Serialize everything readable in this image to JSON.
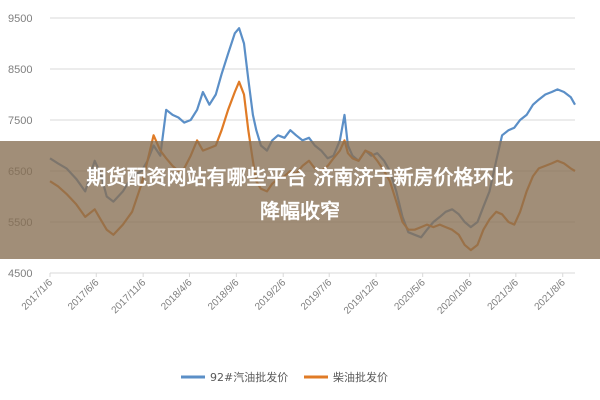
{
  "banner": {
    "title_line1": "期货配资网站有哪些平台 济南济宁新房价格环比",
    "title_line2": "降幅收窄"
  },
  "chart_data": {
    "type": "line",
    "ylim": [
      4500,
      9500
    ],
    "y_ticks": [
      "9500",
      "8500",
      "7500",
      "6500",
      "5500",
      "4500"
    ],
    "y_tick_values": [
      9500,
      8500,
      7500,
      6500,
      5500,
      4500
    ],
    "x_tick_labels": [
      "2017/1/6",
      "2017/6/6",
      "2017/11/6",
      "2018/4/6",
      "2018/9/6",
      "2019/2/6",
      "2019/7/6",
      "2019/12/6",
      "2020/5/6",
      "2020/10/6",
      "2021/3/6",
      "2021/8/6"
    ],
    "x_range": [
      "2017/1/6",
      "2021/9/15"
    ],
    "grid": "horizontal",
    "legend_position": "bottom",
    "series": [
      {
        "name": "92#汽油批发价",
        "color": "#5b8fc7",
        "points": [
          [
            "2017/1/6",
            6750
          ],
          [
            "2017/2/1",
            6650
          ],
          [
            "2017/3/1",
            6550
          ],
          [
            "2017/4/1",
            6350
          ],
          [
            "2017/5/1",
            6100
          ],
          [
            "2017/6/1",
            6700
          ],
          [
            "2017/6/20",
            6450
          ],
          [
            "2017/7/10",
            6000
          ],
          [
            "2017/8/1",
            5900
          ],
          [
            "2017/9/1",
            6100
          ],
          [
            "2017/10/1",
            6400
          ],
          [
            "2017/11/1",
            6500
          ],
          [
            "2017/11/20",
            6700
          ],
          [
            "2017/12/10",
            7000
          ],
          [
            "2018/1/1",
            6800
          ],
          [
            "2018/1/20",
            7700
          ],
          [
            "2018/2/10",
            7600
          ],
          [
            "2018/3/1",
            7550
          ],
          [
            "2018/3/20",
            7450
          ],
          [
            "2018/4/10",
            7500
          ],
          [
            "2018/5/1",
            7700
          ],
          [
            "2018/5/20",
            8050
          ],
          [
            "2018/6/10",
            7800
          ],
          [
            "2018/7/1",
            8000
          ],
          [
            "2018/7/20",
            8400
          ],
          [
            "2018/8/10",
            8800
          ],
          [
            "2018/9/1",
            9200
          ],
          [
            "2018/9/15",
            9300
          ],
          [
            "2018/10/1",
            9000
          ],
          [
            "2018/10/15",
            8300
          ],
          [
            "2018/10/30",
            7600
          ],
          [
            "2018/11/10",
            7300
          ],
          [
            "2018/11/25",
            7000
          ],
          [
            "2018/12/15",
            6900
          ],
          [
            "2019/1/1",
            7100
          ],
          [
            "2019/1/20",
            7200
          ],
          [
            "2019/2/10",
            7150
          ],
          [
            "2019/3/1",
            7300
          ],
          [
            "2019/3/20",
            7200
          ],
          [
            "2019/4/10",
            7100
          ],
          [
            "2019/5/1",
            7150
          ],
          [
            "2019/5/20",
            7000
          ],
          [
            "2019/6/10",
            6900
          ],
          [
            "2019/7/1",
            6750
          ],
          [
            "2019/7/20",
            6800
          ],
          [
            "2019/8/10",
            7100
          ],
          [
            "2019/8/25",
            7600
          ],
          [
            "2019/9/5",
            7000
          ],
          [
            "2019/9/20",
            6800
          ],
          [
            "2019/10/10",
            6700
          ],
          [
            "2019/11/1",
            6900
          ],
          [
            "2019/11/20",
            6800
          ],
          [
            "2019/12/10",
            6850
          ],
          [
            "2020/1/1",
            6700
          ],
          [
            "2020/1/20",
            6500
          ],
          [
            "2020/2/10",
            6100
          ],
          [
            "2020/3/1",
            5600
          ],
          [
            "2020/3/20",
            5300
          ],
          [
            "2020/4/10",
            5250
          ],
          [
            "2020/5/1",
            5200
          ],
          [
            "2020/5/20",
            5350
          ],
          [
            "2020/6/10",
            5500
          ],
          [
            "2020/7/1",
            5600
          ],
          [
            "2020/7/20",
            5700
          ],
          [
            "2020/8/10",
            5750
          ],
          [
            "2020/9/1",
            5650
          ],
          [
            "2020/9/20",
            5500
          ],
          [
            "2020/10/10",
            5400
          ],
          [
            "2020/11/1",
            5500
          ],
          [
            "2020/11/20",
            5800
          ],
          [
            "2020/12/10",
            6100
          ],
          [
            "2021/1/1",
            6700
          ],
          [
            "2021/1/20",
            7200
          ],
          [
            "2021/2/10",
            7300
          ],
          [
            "2021/3/1",
            7350
          ],
          [
            "2021/3/20",
            7500
          ],
          [
            "2021/4/10",
            7600
          ],
          [
            "2021/5/1",
            7800
          ],
          [
            "2021/5/20",
            7900
          ],
          [
            "2021/6/10",
            8000
          ],
          [
            "2021/7/1",
            8050
          ],
          [
            "2021/7/20",
            8100
          ],
          [
            "2021/8/10",
            8050
          ],
          [
            "2021/9/1",
            7950
          ],
          [
            "2021/9/15",
            7800
          ]
        ]
      },
      {
        "name": "柴油批发价",
        "color": "#e07b26",
        "points": [
          [
            "2017/1/6",
            6300
          ],
          [
            "2017/2/1",
            6200
          ],
          [
            "2017/3/1",
            6050
          ],
          [
            "2017/4/1",
            5850
          ],
          [
            "2017/5/1",
            5600
          ],
          [
            "2017/6/1",
            5750
          ],
          [
            "2017/6/20",
            5550
          ],
          [
            "2017/7/10",
            5350
          ],
          [
            "2017/8/1",
            5250
          ],
          [
            "2017/9/1",
            5450
          ],
          [
            "2017/10/1",
            5700
          ],
          [
            "2017/11/1",
            6250
          ],
          [
            "2017/11/20",
            6700
          ],
          [
            "2017/12/10",
            7200
          ],
          [
            "2018/1/1",
            6900
          ],
          [
            "2018/1/20",
            6750
          ],
          [
            "2018/2/10",
            6600
          ],
          [
            "2018/3/1",
            6500
          ],
          [
            "2018/3/20",
            6550
          ],
          [
            "2018/4/10",
            6800
          ],
          [
            "2018/5/1",
            7100
          ],
          [
            "2018/5/20",
            6900
          ],
          [
            "2018/6/10",
            6950
          ],
          [
            "2018/7/1",
            7000
          ],
          [
            "2018/7/20",
            7300
          ],
          [
            "2018/8/10",
            7700
          ],
          [
            "2018/9/1",
            8050
          ],
          [
            "2018/9/15",
            8250
          ],
          [
            "2018/10/1",
            8000
          ],
          [
            "2018/10/15",
            7300
          ],
          [
            "2018/10/30",
            6700
          ],
          [
            "2018/11/10",
            6300
          ],
          [
            "2018/11/25",
            6150
          ],
          [
            "2018/12/15",
            6100
          ],
          [
            "2019/1/1",
            6250
          ],
          [
            "2019/1/20",
            6350
          ],
          [
            "2019/2/10",
            6400
          ],
          [
            "2019/3/1",
            6500
          ],
          [
            "2019/3/20",
            6450
          ],
          [
            "2019/4/10",
            6600
          ],
          [
            "2019/5/1",
            6700
          ],
          [
            "2019/5/20",
            6550
          ],
          [
            "2019/6/10",
            6500
          ],
          [
            "2019/7/1",
            6600
          ],
          [
            "2019/7/20",
            6750
          ],
          [
            "2019/8/10",
            6900
          ],
          [
            "2019/8/25",
            7100
          ],
          [
            "2019/9/5",
            6850
          ],
          [
            "2019/9/20",
            6750
          ],
          [
            "2019/10/10",
            6700
          ],
          [
            "2019/11/1",
            6900
          ],
          [
            "2019/11/20",
            6850
          ],
          [
            "2019/12/10",
            6700
          ],
          [
            "2020/1/1",
            6500
          ],
          [
            "2020/1/20",
            6300
          ],
          [
            "2020/2/10",
            5900
          ],
          [
            "2020/3/1",
            5500
          ],
          [
            "2020/3/20",
            5350
          ],
          [
            "2020/4/10",
            5350
          ],
          [
            "2020/5/1",
            5400
          ],
          [
            "2020/5/20",
            5450
          ],
          [
            "2020/6/10",
            5400
          ],
          [
            "2020/7/1",
            5450
          ],
          [
            "2020/7/20",
            5400
          ],
          [
            "2020/8/10",
            5350
          ],
          [
            "2020/9/1",
            5250
          ],
          [
            "2020/9/20",
            5050
          ],
          [
            "2020/10/10",
            4950
          ],
          [
            "2020/11/1",
            5050
          ],
          [
            "2020/11/20",
            5350
          ],
          [
            "2020/12/10",
            5550
          ],
          [
            "2021/1/1",
            5700
          ],
          [
            "2021/1/20",
            5650
          ],
          [
            "2021/2/10",
            5500
          ],
          [
            "2021/3/1",
            5450
          ],
          [
            "2021/3/20",
            5700
          ],
          [
            "2021/4/10",
            6100
          ],
          [
            "2021/5/1",
            6400
          ],
          [
            "2021/5/20",
            6550
          ],
          [
            "2021/6/10",
            6600
          ],
          [
            "2021/7/1",
            6650
          ],
          [
            "2021/7/20",
            6700
          ],
          [
            "2021/8/10",
            6650
          ],
          [
            "2021/9/1",
            6550
          ],
          [
            "2021/9/15",
            6500
          ]
        ]
      }
    ]
  }
}
